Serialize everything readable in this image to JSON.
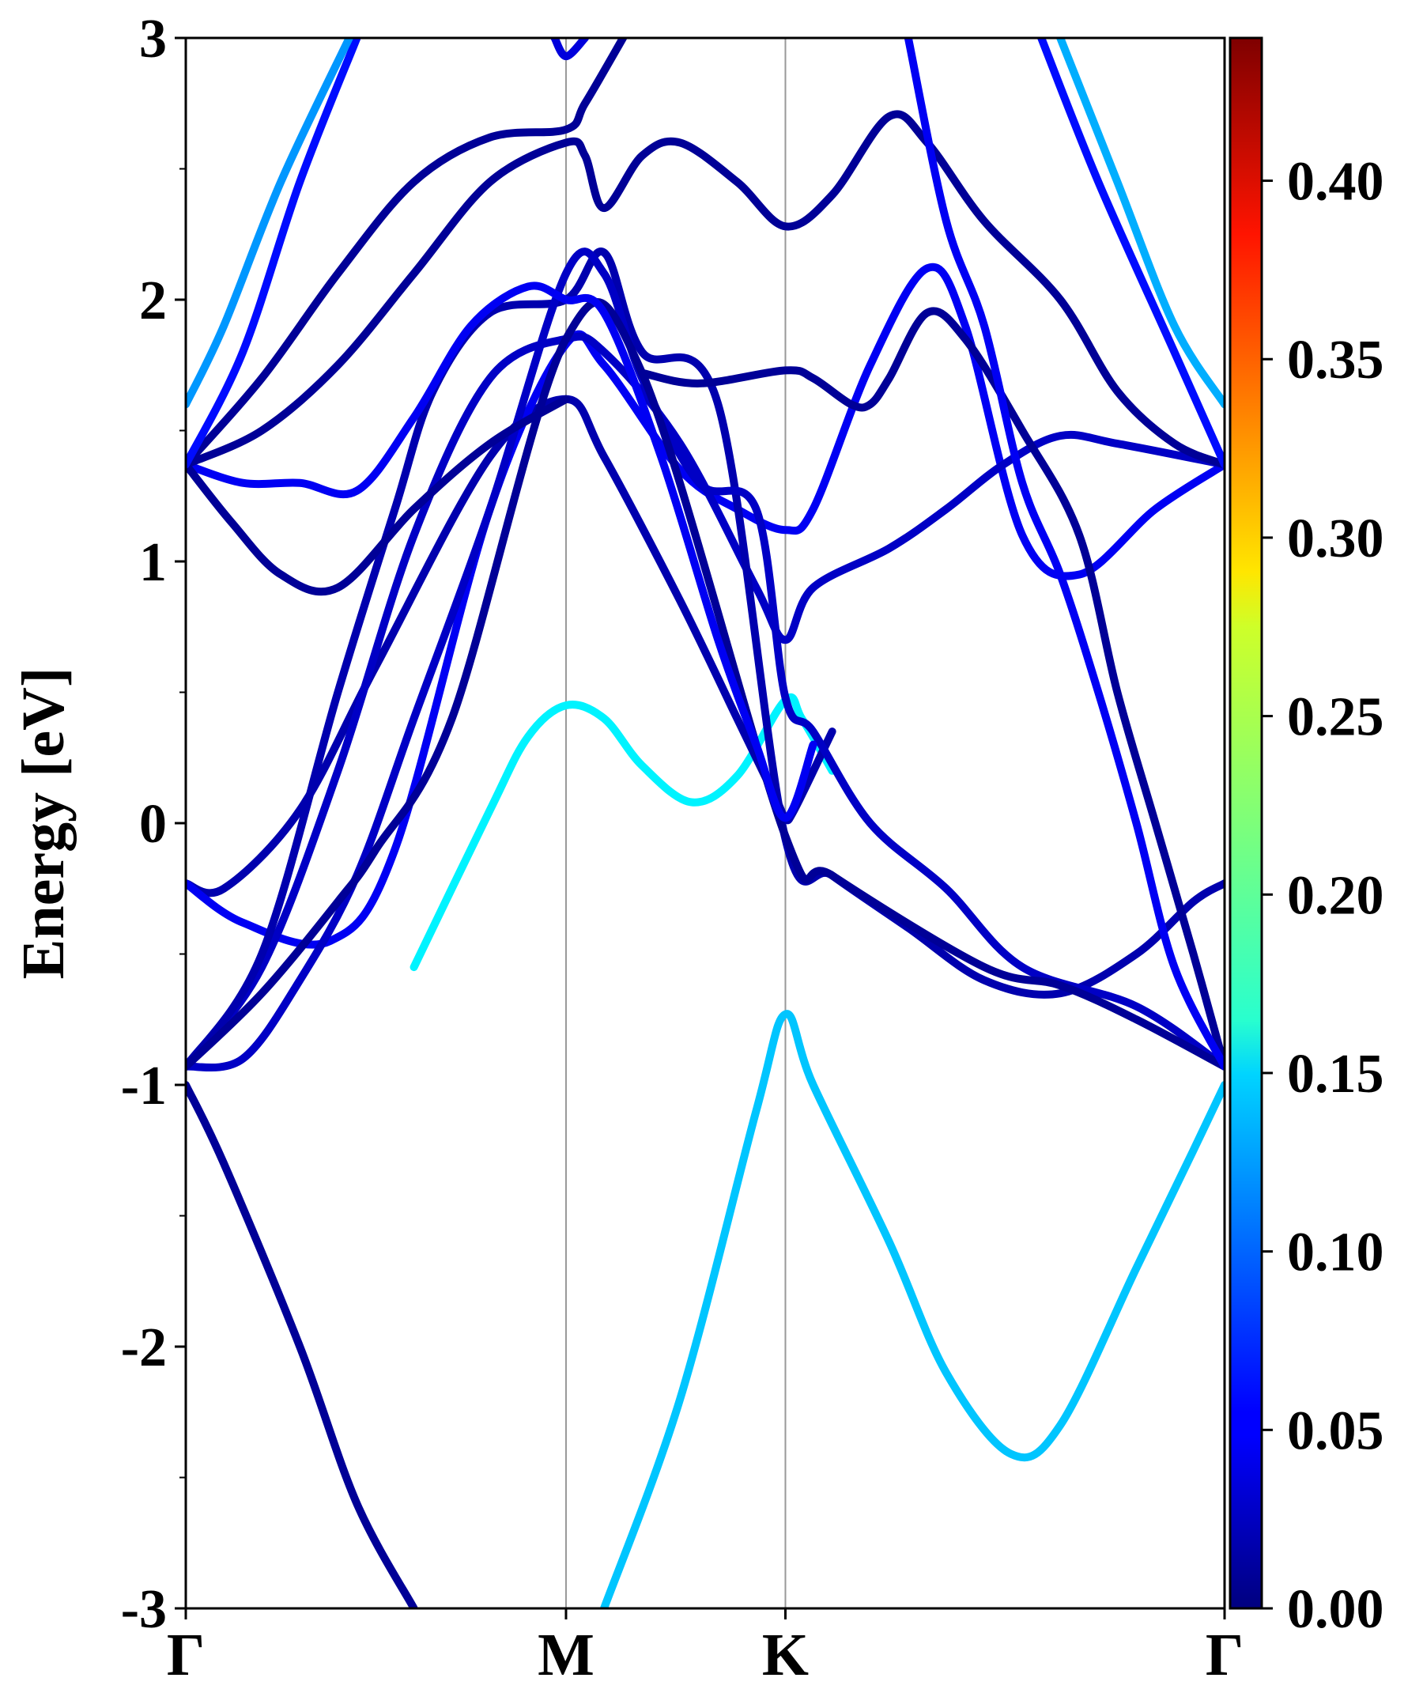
{
  "chart_data": {
    "type": "line",
    "title": "",
    "xlabel": "",
    "ylabel": "Energy [eV]",
    "ylim": [
      -3,
      3
    ],
    "y_ticks": [
      "3",
      "2",
      "1",
      "0",
      "-1",
      "-2",
      "-3"
    ],
    "y_tick_values": [
      3,
      2,
      1,
      0,
      -1,
      -2,
      -3
    ],
    "x_path": {
      "labels": [
        "Γ",
        "M",
        "K",
        "Γ"
      ],
      "positions": [
        0,
        1,
        1.577,
        2.732
      ]
    },
    "colorbar": {
      "colormap": "jet",
      "range": [
        0,
        0.44
      ],
      "ticks": [
        "0.00",
        "0.05",
        "0.10",
        "0.15",
        "0.20",
        "0.25",
        "0.30",
        "0.35",
        "0.40"
      ],
      "tick_values": [
        0,
        0.05,
        0.1,
        0.15,
        0.2,
        0.25,
        0.3,
        0.35,
        0.4
      ]
    },
    "series": [
      {
        "weight": 0.01,
        "points": [
          [
            0,
            -1.0
          ],
          [
            0.1,
            -1.3
          ],
          [
            0.3,
            -2.0
          ],
          [
            0.45,
            -2.6
          ],
          [
            0.6,
            -3.0
          ]
        ]
      },
      {
        "weight": 0.14,
        "points": [
          [
            1.1,
            -3.0
          ],
          [
            1.3,
            -2.2
          ],
          [
            1.5,
            -1.1
          ],
          [
            1.577,
            -0.73
          ],
          [
            1.65,
            -1.0
          ],
          [
            1.85,
            -1.6
          ],
          [
            2.0,
            -2.1
          ],
          [
            2.17,
            -2.41
          ],
          [
            2.3,
            -2.3
          ],
          [
            2.5,
            -1.7
          ],
          [
            2.65,
            -1.25
          ],
          [
            2.732,
            -1.0
          ]
        ]
      },
      {
        "weight": 0.16,
        "points": [
          [
            0.6,
            -0.55
          ],
          [
            0.8,
            0.05
          ],
          [
            0.9,
            0.33
          ],
          [
            1.0,
            0.45
          ],
          [
            1.1,
            0.4
          ],
          [
            1.2,
            0.22
          ],
          [
            1.33,
            0.08
          ],
          [
            1.45,
            0.18
          ],
          [
            1.577,
            0.47
          ],
          [
            1.62,
            0.4
          ],
          [
            1.7,
            0.2
          ]
        ]
      },
      {
        "weight": 0.02,
        "points": [
          [
            0,
            -0.23
          ],
          [
            0.1,
            -0.25
          ],
          [
            0.3,
            0.05
          ],
          [
            0.5,
            0.6
          ],
          [
            0.8,
            1.4
          ],
          [
            1.0,
            1.62
          ],
          [
            1.1,
            1.4
          ],
          [
            1.3,
            0.85
          ],
          [
            1.45,
            0.4
          ],
          [
            1.55,
            0.1
          ],
          [
            1.577,
            0.02
          ],
          [
            1.6,
            0.05
          ],
          [
            1.7,
            0.35
          ]
        ]
      },
      {
        "weight": 0.05,
        "points": [
          [
            0,
            -0.23
          ],
          [
            0.15,
            -0.38
          ],
          [
            0.38,
            -0.45
          ],
          [
            0.55,
            -0.1
          ],
          [
            0.8,
            1.2
          ],
          [
            1.0,
            1.83
          ],
          [
            1.1,
            1.75
          ],
          [
            1.3,
            1.35
          ],
          [
            1.45,
            1.2
          ],
          [
            1.577,
            1.12
          ],
          [
            1.65,
            1.2
          ],
          [
            1.8,
            1.75
          ],
          [
            1.95,
            2.12
          ],
          [
            2.05,
            1.9
          ],
          [
            2.2,
            1.1
          ],
          [
            2.35,
            0.95
          ],
          [
            2.55,
            1.2
          ],
          [
            2.732,
            1.37
          ]
        ]
      },
      {
        "weight": 0.03,
        "points": [
          [
            0,
            -0.93
          ],
          [
            0.2,
            -0.55
          ],
          [
            0.4,
            0.2
          ],
          [
            0.6,
            1.1
          ],
          [
            0.8,
            1.7
          ],
          [
            1.0,
            1.85
          ],
          [
            1.1,
            1.8
          ],
          [
            1.3,
            1.45
          ],
          [
            1.5,
            0.9
          ],
          [
            1.577,
            0.7
          ],
          [
            1.65,
            0.9
          ],
          [
            1.85,
            1.05
          ],
          [
            2.0,
            1.2
          ],
          [
            2.15,
            1.37
          ],
          [
            2.3,
            1.48
          ],
          [
            2.45,
            1.45
          ],
          [
            2.732,
            1.37
          ]
        ]
      },
      {
        "weight": 0.02,
        "points": [
          [
            0,
            -0.93
          ],
          [
            0.2,
            -0.5
          ],
          [
            0.4,
            0.5
          ],
          [
            0.55,
            1.2
          ],
          [
            0.65,
            1.65
          ],
          [
            0.8,
            1.95
          ],
          [
            1.0,
            2.0
          ],
          [
            1.1,
            2.18
          ],
          [
            1.2,
            1.8
          ],
          [
            1.4,
            1.6
          ],
          [
            1.577,
            -0.06
          ],
          [
            1.7,
            -0.2
          ],
          [
            1.9,
            -0.4
          ],
          [
            2.1,
            -0.6
          ],
          [
            2.3,
            -0.65
          ],
          [
            2.5,
            -0.5
          ],
          [
            2.65,
            -0.3
          ],
          [
            2.732,
            -0.23
          ]
        ]
      },
      {
        "weight": 0.03,
        "points": [
          [
            0,
            -0.93
          ],
          [
            0.15,
            -0.9
          ],
          [
            0.3,
            -0.6
          ],
          [
            0.45,
            -0.2
          ],
          [
            0.6,
            0.4
          ],
          [
            0.8,
            1.2
          ],
          [
            1.0,
            2.1
          ],
          [
            1.1,
            2.1
          ],
          [
            1.2,
            1.7
          ],
          [
            1.35,
            1.3
          ],
          [
            1.5,
            1.2
          ],
          [
            1.577,
            0.48
          ],
          [
            1.65,
            0.35
          ],
          [
            1.8,
            0.0
          ],
          [
            2.0,
            -0.25
          ],
          [
            2.2,
            -0.55
          ],
          [
            2.5,
            -0.7
          ],
          [
            2.732,
            -0.93
          ]
        ]
      },
      {
        "weight": 0.01,
        "points": [
          [
            0,
            -0.93
          ],
          [
            0.2,
            -0.65
          ],
          [
            0.4,
            -0.3
          ],
          [
            0.5,
            -0.1
          ],
          [
            0.7,
            0.4
          ],
          [
            1.0,
            1.85
          ],
          [
            1.2,
            1.72
          ],
          [
            1.577,
            -0.05
          ],
          [
            1.7,
            -0.2
          ],
          [
            2.1,
            -0.55
          ],
          [
            2.3,
            -0.62
          ],
          [
            2.5,
            -0.75
          ],
          [
            2.732,
            -0.93
          ]
        ]
      },
      {
        "weight": 0.05,
        "points": [
          [
            0,
            1.37
          ],
          [
            0.15,
            1.3
          ],
          [
            0.3,
            1.3
          ],
          [
            0.45,
            1.27
          ],
          [
            0.6,
            1.55
          ],
          [
            0.75,
            1.9
          ],
          [
            0.9,
            2.05
          ],
          [
            1.0,
            2.0
          ],
          [
            1.1,
            1.95
          ],
          [
            1.25,
            1.4
          ],
          [
            1.4,
            0.7
          ],
          [
            1.5,
            0.3
          ],
          [
            1.577,
            0.02
          ],
          [
            1.65,
            0.3
          ]
        ]
      },
      {
        "weight": 0.01,
        "points": [
          [
            0,
            1.37
          ],
          [
            0.12,
            1.15
          ],
          [
            0.25,
            0.95
          ],
          [
            0.4,
            0.9
          ],
          [
            0.6,
            1.2
          ],
          [
            0.8,
            1.45
          ],
          [
            1.0,
            1.62
          ]
        ]
      },
      {
        "weight": 0.01,
        "points": [
          [
            0,
            1.37
          ],
          [
            0.2,
            1.5
          ],
          [
            0.4,
            1.75
          ],
          [
            0.6,
            2.1
          ],
          [
            0.8,
            2.45
          ],
          [
            1.0,
            2.6
          ],
          [
            1.05,
            2.55
          ],
          [
            1.1,
            2.35
          ],
          [
            1.2,
            2.55
          ],
          [
            1.3,
            2.6
          ],
          [
            1.45,
            2.45
          ],
          [
            1.577,
            2.28
          ],
          [
            1.7,
            2.4
          ],
          [
            1.85,
            2.7
          ],
          [
            1.95,
            2.6
          ],
          [
            2.1,
            2.3
          ],
          [
            2.3,
            2.0
          ],
          [
            2.45,
            1.65
          ],
          [
            2.6,
            1.45
          ],
          [
            2.732,
            1.37
          ]
        ]
      },
      {
        "weight": 0.01,
        "points": [
          [
            0,
            1.37
          ],
          [
            0.2,
            1.7
          ],
          [
            0.4,
            2.1
          ],
          [
            0.6,
            2.45
          ],
          [
            0.8,
            2.62
          ],
          [
            1.0,
            2.65
          ],
          [
            1.05,
            2.75
          ],
          [
            1.15,
            3.0
          ]
        ]
      },
      {
        "weight": 0.01,
        "points": [
          [
            1.2,
            1.72
          ],
          [
            1.35,
            1.68
          ],
          [
            1.577,
            1.73
          ],
          [
            1.65,
            1.7
          ],
          [
            1.75,
            1.6
          ],
          [
            1.8,
            1.6
          ],
          [
            1.85,
            1.7
          ],
          [
            1.95,
            1.95
          ],
          [
            2.05,
            1.85
          ],
          [
            2.2,
            1.5
          ],
          [
            2.35,
            1.1
          ],
          [
            2.45,
            0.5
          ],
          [
            2.55,
            0.0
          ],
          [
            2.65,
            -0.5
          ],
          [
            2.732,
            -0.93
          ]
        ]
      },
      {
        "weight": 0.06,
        "points": [
          [
            0,
            1.37
          ],
          [
            0.15,
            1.8
          ],
          [
            0.3,
            2.45
          ],
          [
            0.45,
            3.0
          ]
        ]
      },
      {
        "weight": 0.12,
        "points": [
          [
            0,
            1.6
          ],
          [
            0.1,
            1.9
          ],
          [
            0.25,
            2.45
          ],
          [
            0.43,
            3.0
          ]
        ]
      },
      {
        "weight": 0.13,
        "points": [
          [
            2.3,
            3.0
          ],
          [
            2.45,
            2.45
          ],
          [
            2.6,
            1.9
          ],
          [
            2.732,
            1.6
          ]
        ]
      },
      {
        "weight": 0.06,
        "points": [
          [
            2.25,
            3.0
          ],
          [
            2.4,
            2.45
          ],
          [
            2.6,
            1.8
          ],
          [
            2.732,
            1.37
          ]
        ]
      },
      {
        "weight": 0.04,
        "points": [
          [
            0.97,
            3.0
          ],
          [
            1.0,
            2.93
          ],
          [
            1.05,
            3.0
          ]
        ]
      },
      {
        "weight": 0.05,
        "points": [
          [
            1.9,
            3.0
          ],
          [
            2.0,
            2.3
          ],
          [
            2.1,
            1.9
          ],
          [
            2.2,
            1.3
          ],
          [
            2.3,
            0.95
          ],
          [
            2.4,
            0.5
          ],
          [
            2.5,
            0.0
          ],
          [
            2.6,
            -0.55
          ],
          [
            2.732,
            -0.93
          ]
        ]
      }
    ]
  }
}
